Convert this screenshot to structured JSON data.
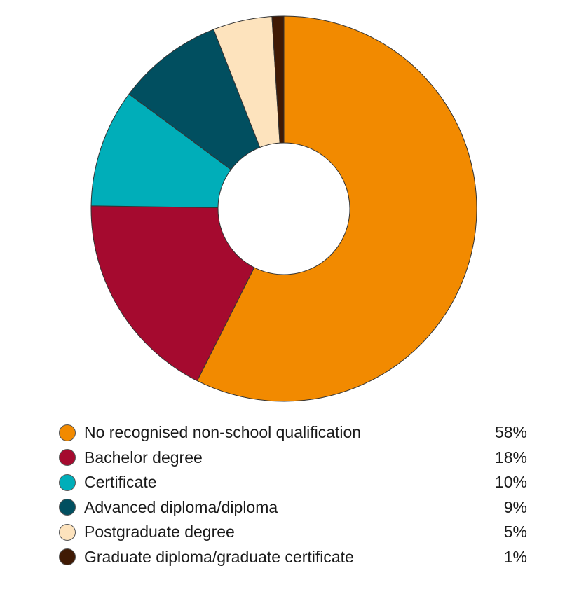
{
  "chart_data": {
    "type": "pie",
    "donut": true,
    "legend_position": "bottom",
    "categories": [
      "No recognised non-school qualification",
      "Bachelor degree",
      "Certificate",
      "Advanced diploma/diploma",
      "Postgraduate degree",
      "Graduate diploma/graduate certificate"
    ],
    "values": [
      58,
      18,
      10,
      9,
      5,
      1
    ],
    "value_labels": [
      "58%",
      "18%",
      "10%",
      "9%",
      "5%",
      "1%"
    ],
    "colors": [
      "#f28a00",
      "#a50a2f",
      "#00aeb9",
      "#014f60",
      "#fde3bd",
      "#401a04"
    ]
  }
}
